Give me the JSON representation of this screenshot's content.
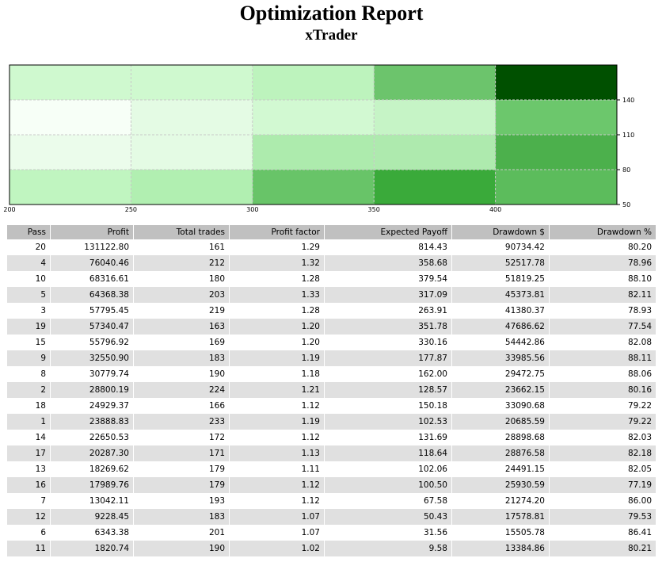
{
  "report": {
    "title": "Optimization Report",
    "subtitle": "xTrader"
  },
  "chart_data": {
    "type": "heatmap",
    "x_ticks": [
      "200",
      "250",
      "300",
      "350",
      "400"
    ],
    "y_ticks": [
      "140",
      "110",
      "80",
      "50"
    ],
    "x_bins": [
      200,
      250,
      300,
      350,
      400,
      450
    ],
    "y_bins": [
      50,
      80,
      110,
      140,
      170
    ],
    "rows": [
      {
        "y_range": [
          140,
          170
        ],
        "colors": [
          "#cff9cf",
          "#cff9cf",
          "#bdf3bd",
          "#6cc46c",
          "#005000"
        ]
      },
      {
        "y_range": [
          110,
          140
        ],
        "colors": [
          "#f7fff7",
          "#e4fbe4",
          "#d2f9d2",
          "#c6f4c6",
          "#6cc76c"
        ]
      },
      {
        "y_range": [
          80,
          110
        ],
        "colors": [
          "#ebfceb",
          "#e4fbe4",
          "#adebad",
          "#aeeaae",
          "#4cb04c"
        ]
      },
      {
        "y_range": [
          50,
          80
        ],
        "colors": [
          "#c0f5c0",
          "#b1efb1",
          "#68c468",
          "#3aaa3a",
          "#5cbc5c"
        ]
      }
    ],
    "color_scale": [
      "#f7fff7",
      "#005000"
    ],
    "grid": true
  },
  "table": {
    "columns": [
      "Pass",
      "Profit",
      "Total trades",
      "Profit factor",
      "Expected Payoff",
      "Drawdown $",
      "Drawdown %"
    ],
    "rows": [
      [
        "20",
        "131122.80",
        "161",
        "1.29",
        "814.43",
        "90734.42",
        "80.20"
      ],
      [
        "4",
        "76040.46",
        "212",
        "1.32",
        "358.68",
        "52517.78",
        "78.96"
      ],
      [
        "10",
        "68316.61",
        "180",
        "1.28",
        "379.54",
        "51819.25",
        "88.10"
      ],
      [
        "5",
        "64368.38",
        "203",
        "1.33",
        "317.09",
        "45373.81",
        "82.11"
      ],
      [
        "3",
        "57795.45",
        "219",
        "1.28",
        "263.91",
        "41380.37",
        "78.93"
      ],
      [
        "19",
        "57340.47",
        "163",
        "1.20",
        "351.78",
        "47686.62",
        "77.54"
      ],
      [
        "15",
        "55796.92",
        "169",
        "1.20",
        "330.16",
        "54442.86",
        "82.08"
      ],
      [
        "9",
        "32550.90",
        "183",
        "1.19",
        "177.87",
        "33985.56",
        "88.11"
      ],
      [
        "8",
        "30779.74",
        "190",
        "1.18",
        "162.00",
        "29472.75",
        "88.06"
      ],
      [
        "2",
        "28800.19",
        "224",
        "1.21",
        "128.57",
        "23662.15",
        "80.16"
      ],
      [
        "18",
        "24929.37",
        "166",
        "1.12",
        "150.18",
        "33090.68",
        "79.22"
      ],
      [
        "1",
        "23888.83",
        "233",
        "1.19",
        "102.53",
        "20685.59",
        "79.22"
      ],
      [
        "14",
        "22650.53",
        "172",
        "1.12",
        "131.69",
        "28898.68",
        "82.03"
      ],
      [
        "17",
        "20287.30",
        "171",
        "1.13",
        "118.64",
        "28876.58",
        "82.18"
      ],
      [
        "13",
        "18269.62",
        "179",
        "1.11",
        "102.06",
        "24491.15",
        "82.05"
      ],
      [
        "16",
        "17989.76",
        "179",
        "1.12",
        "100.50",
        "25930.59",
        "77.19"
      ],
      [
        "7",
        "13042.11",
        "193",
        "1.12",
        "67.58",
        "21274.20",
        "86.00"
      ],
      [
        "12",
        "9228.45",
        "183",
        "1.07",
        "50.43",
        "17578.81",
        "79.53"
      ],
      [
        "6",
        "6343.38",
        "201",
        "1.07",
        "31.56",
        "15505.78",
        "86.41"
      ],
      [
        "11",
        "1820.74",
        "190",
        "1.02",
        "9.58",
        "13384.86",
        "80.21"
      ]
    ]
  }
}
